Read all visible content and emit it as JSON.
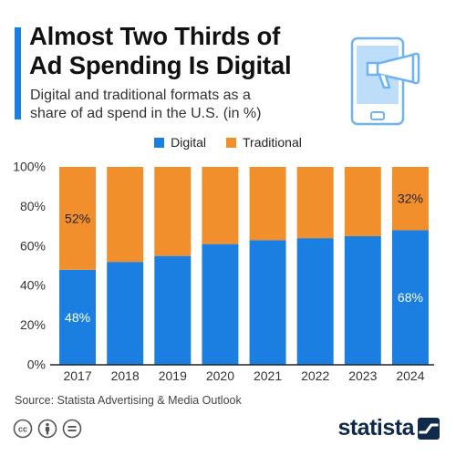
{
  "header": {
    "title_lines": [
      "Almost Two Thirds of",
      "Ad Spending Is Digital"
    ],
    "subtitle_lines": [
      "Digital and traditional formats as a",
      "share of ad spend in the U.S. (in %)"
    ]
  },
  "footer": {
    "source": "Source: Statista Advertising & Media Outlook",
    "brand": "statista"
  },
  "illustration": {
    "icon": "megaphone-on-phone-icon"
  },
  "license_icons": [
    "cc-icon",
    "attribution-icon",
    "no-derivatives-icon"
  ],
  "colors": {
    "accent": "#1A7FE0",
    "digital": "#1A7FE0",
    "traditional": "#F08F2C",
    "illustration": "#6FB3F2",
    "brand_dark": "#0f2a4a"
  },
  "chart_data": {
    "type": "bar",
    "stacked": true,
    "categories": [
      "2017",
      "2018",
      "2019",
      "2020",
      "2021",
      "2022",
      "2023",
      "2024"
    ],
    "series": [
      {
        "name": "Digital",
        "values": [
          48,
          52,
          55,
          61,
          63,
          64,
          65,
          68
        ]
      },
      {
        "name": "Traditional",
        "values": [
          52,
          48,
          45,
          39,
          37,
          36,
          35,
          32
        ]
      }
    ],
    "ylim": [
      0,
      100
    ],
    "yticks": [
      0,
      20,
      40,
      60,
      80,
      100
    ],
    "ytick_labels": [
      "0%",
      "20%",
      "40%",
      "60%",
      "80%",
      "100%"
    ],
    "data_labels": [
      {
        "series": "Digital",
        "category": "2017",
        "text": "48%"
      },
      {
        "series": "Traditional",
        "category": "2017",
        "text": "52%"
      },
      {
        "series": "Digital",
        "category": "2024",
        "text": "68%"
      },
      {
        "series": "Traditional",
        "category": "2024",
        "text": "32%"
      }
    ],
    "legend_position": "top-center",
    "grid": false
  }
}
